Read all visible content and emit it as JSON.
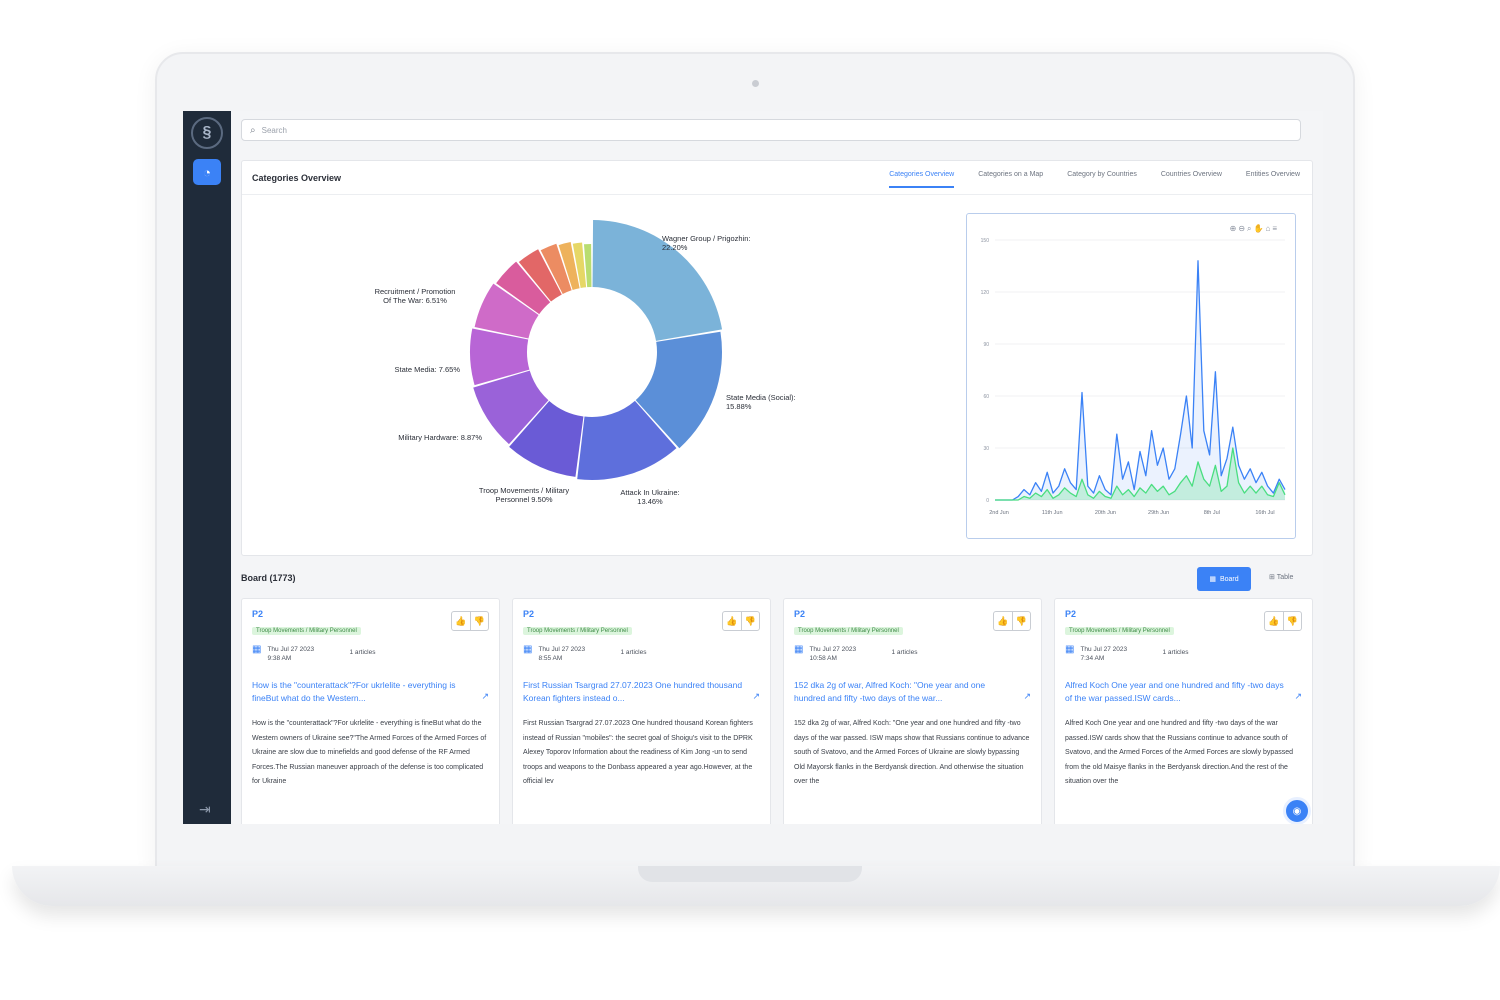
{
  "search": {
    "placeholder": "Search"
  },
  "overview": {
    "title": "Categories Overview",
    "tabs": [
      "Categories Overview",
      "Categories on a Map",
      "Category by Countries",
      "Countries Overview",
      "Entities Overview"
    ],
    "active_tab": "Categories Overview"
  },
  "colors": {
    "accent": "#3b82f6",
    "sidebar": "#1f2b3a",
    "tag_bg": "#dcf5dd",
    "tag_text": "#3d8a45"
  },
  "chart_data": [
    {
      "type": "pie",
      "variant": "donut",
      "slices": [
        {
          "label": "Wagner Group / Prigozhin: 22.20%",
          "value": 22.2,
          "color": "#7bb3d9"
        },
        {
          "label": "State Media (Social): 15.88%",
          "value": 15.88,
          "color": "#5b8fd8"
        },
        {
          "label": "Attack In Ukraine: 13.46%",
          "value": 13.46,
          "color": "#5e6fdc"
        },
        {
          "label": "Troop Movements / Military Personnel 9.50%",
          "value": 9.5,
          "color": "#6a5bd6"
        },
        {
          "label": "Military Hardware: 8.87%",
          "value": 8.87,
          "color": "#9a62d9"
        },
        {
          "label": "State Media: 7.65%",
          "value": 7.65,
          "color": "#b865d6"
        },
        {
          "label": "Recruitment / Promotion Of The War: 6.51%",
          "value": 6.51,
          "color": "#cf6bc8"
        },
        {
          "label": "",
          "value": 4.2,
          "color": "#d95c9d"
        },
        {
          "label": "",
          "value": 3.4,
          "color": "#e26767"
        },
        {
          "label": "",
          "value": 2.6,
          "color": "#ec8c62"
        },
        {
          "label": "",
          "value": 2.0,
          "color": "#eeb25c"
        },
        {
          "label": "",
          "value": 1.6,
          "color": "#e6d766"
        },
        {
          "label": "",
          "value": 1.3,
          "color": "#b9dd70"
        }
      ]
    },
    {
      "type": "area",
      "ylim": [
        0,
        150
      ],
      "yticks": [
        "0",
        "30",
        "60",
        "90",
        "120",
        "150"
      ],
      "xticks": [
        "2nd Jun",
        "11th Jun",
        "20th Jun",
        "29th Jun",
        "8th Jul",
        "16th Jul"
      ],
      "x_range": [
        0,
        50
      ],
      "series": [
        {
          "color": "#3b82f6",
          "values": [
            0,
            0,
            0,
            0,
            2,
            6,
            3,
            10,
            5,
            16,
            4,
            8,
            18,
            10,
            6,
            62,
            8,
            4,
            14,
            6,
            3,
            38,
            12,
            22,
            6,
            28,
            14,
            40,
            20,
            30,
            12,
            18,
            38,
            60,
            30,
            138,
            40,
            26,
            74,
            14,
            24,
            42,
            20,
            12,
            18,
            10,
            16,
            8,
            4,
            12,
            6
          ]
        },
        {
          "color": "#4ade80",
          "values": [
            0,
            0,
            0,
            0,
            0,
            2,
            1,
            4,
            2,
            6,
            1,
            3,
            7,
            4,
            2,
            12,
            3,
            1,
            5,
            2,
            1,
            8,
            3,
            6,
            2,
            7,
            4,
            9,
            5,
            8,
            3,
            5,
            10,
            14,
            8,
            22,
            12,
            8,
            20,
            5,
            8,
            30,
            10,
            4,
            8,
            4,
            8,
            3,
            2,
            10,
            3
          ]
        }
      ]
    }
  ],
  "board": {
    "title": "Board (1773)",
    "board_label": "Board",
    "table_label": "Table",
    "cards": [
      {
        "priority": "P2",
        "tag": "Troop Movements / Military Personnel",
        "date": "Thu Jul 27 2023",
        "time": "9:38 AM",
        "articles": "1 articles",
        "headline": "How is the \"counterattack\"?For ukrlelite - everything is fineBut what do the Western...",
        "body": "How is the \"counterattack\"?For ukrlelite - everything is fineBut what do the Western owners of Ukraine see?\"The Armed Forces of the Armed Forces of Ukraine are slow due to minefields and good defense of the RF Armed Forces.The Russian maneuver approach of the defense is too complicated for Ukraine"
      },
      {
        "priority": "P2",
        "tag": "Troop Movements / Military Personnel",
        "date": "Thu Jul 27 2023",
        "time": "8:55 AM",
        "articles": "1 articles",
        "headline": "First Russian Tsargrad 27.07.2023 One hundred thousand Korean fighters instead o...",
        "body": "First Russian Tsargrad 27.07.2023 One hundred thousand Korean fighters instead of Russian \"mobiles\": the secret goal of Shoigu's visit to the DPRK Alexey Toporov Information about the readiness of Kim Jong -un to send troops and weapons to the Donbass appeared a year ago.However, at the official lev"
      },
      {
        "priority": "P2",
        "tag": "Troop Movements / Military Personnel",
        "date": "Thu Jul 27 2023",
        "time": "10:58 AM",
        "articles": "1 articles",
        "headline": "152 dka 2g of war, Alfred Koch: \"One year and one hundred and fifty -two days of the war...",
        "body": "152 dka 2g of war, Alfred Koch: \"One year and one hundred and fifty -two days of the war passed. ISW maps show that Russians continue to advance south of Svatovo, and the Armed Forces of Ukraine are slowly bypassing Old Mayorsk flanks in the Berdyansk direction. And otherwise the situation over the"
      },
      {
        "priority": "P2",
        "tag": "Troop Movements / Military Personnel",
        "date": "Thu Jul 27 2023",
        "time": "7:34 AM",
        "articles": "1 articles",
        "headline": "Alfred Koch One year and one hundred and fifty -two days of the war passed.ISW cards...",
        "body": "Alfred Koch One year and one hundred and fifty -two days of the war passed.ISW cards show that the Russians continue to advance south of Svatovo, and the Armed Forces of the Armed Forces are slowly bypassed from the old Maisye flanks in the Berdyansk direction.And the rest of the situation over the"
      }
    ]
  }
}
